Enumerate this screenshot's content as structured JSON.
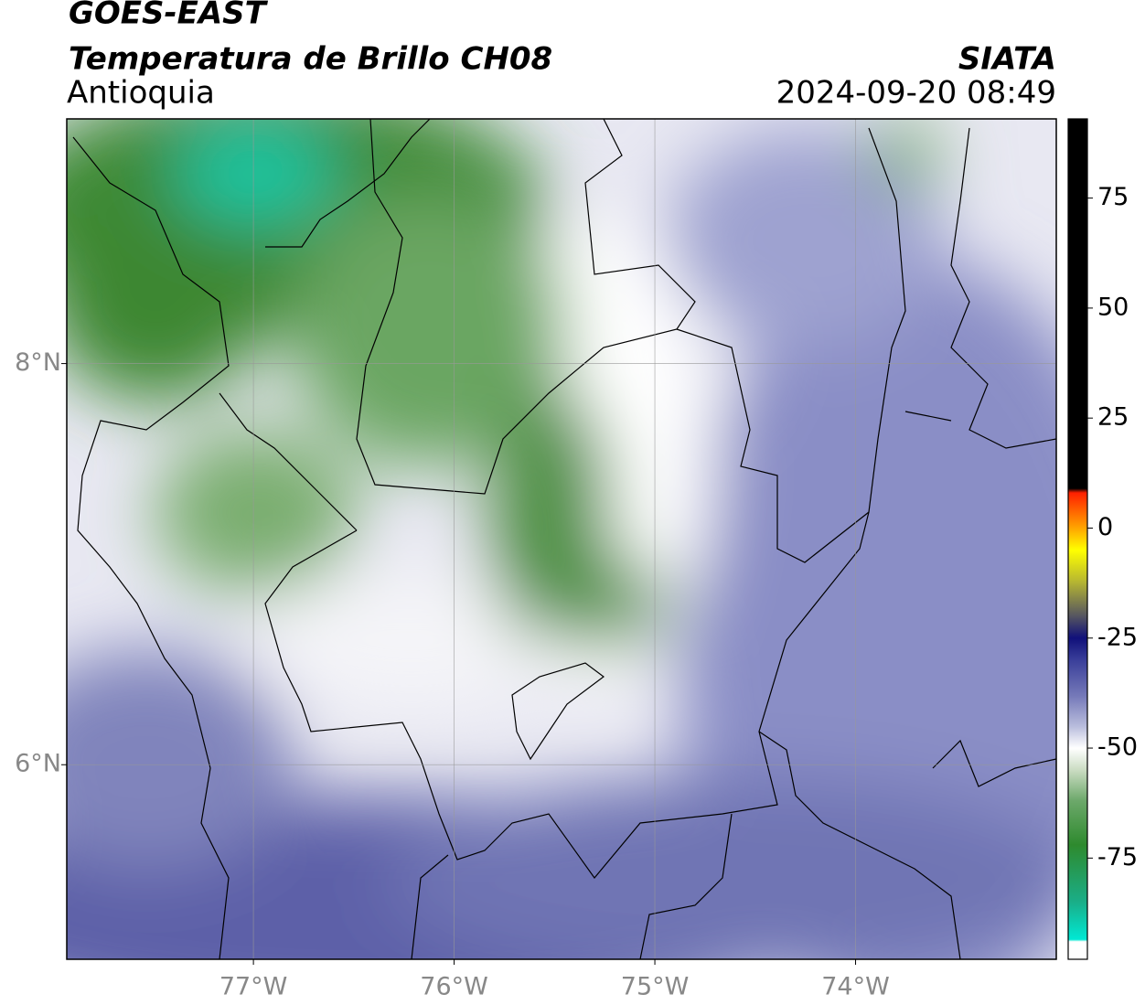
{
  "header": {
    "title": "GOES-EAST",
    "subtitle": "Temperatura de Brillo CH08",
    "region": "Antioquia",
    "source": "SIATA",
    "timestamp": "2024-09-20 08:49"
  },
  "map": {
    "xlim": [
      -77.93,
      -73.0
    ],
    "ylim": [
      5.03,
      9.22
    ],
    "xticks": [
      {
        "value": -77,
        "label": "77°W"
      },
      {
        "value": -76,
        "label": "76°W"
      },
      {
        "value": -75,
        "label": "75°W"
      },
      {
        "value": -74,
        "label": "74°W"
      }
    ],
    "yticks": [
      {
        "value": 8,
        "label": "8°N"
      },
      {
        "value": 6,
        "label": "6°N"
      }
    ],
    "grid": true
  },
  "colorbar": {
    "lim": [
      -98,
      93
    ],
    "ticks": [
      75,
      50,
      25,
      0,
      -25,
      -50,
      -75
    ],
    "colormap": [
      {
        "value": -98,
        "color": "#ffffff"
      },
      {
        "value": -94,
        "color": "#ffffff"
      },
      {
        "value": -93.5,
        "color": "#00e8d4"
      },
      {
        "value": -85,
        "color": "#1aae88"
      },
      {
        "value": -72,
        "color": "#2e8a2e"
      },
      {
        "value": -62,
        "color": "#6ca86a"
      },
      {
        "value": -55,
        "color": "#cadcc2"
      },
      {
        "value": -50,
        "color": "#ffffff"
      },
      {
        "value": -45,
        "color": "#b8bcdc"
      },
      {
        "value": -38,
        "color": "#7478b8"
      },
      {
        "value": -30,
        "color": "#3a3f9a"
      },
      {
        "value": -25,
        "color": "#10107a"
      },
      {
        "value": -20,
        "color": "#555560"
      },
      {
        "value": -12,
        "color": "#b8b830"
      },
      {
        "value": -5,
        "color": "#ffff00"
      },
      {
        "value": 0,
        "color": "#ffa500"
      },
      {
        "value": 8,
        "color": "#ff2000"
      },
      {
        "value": 9,
        "color": "#000000"
      },
      {
        "value": 93,
        "color": "#000000"
      }
    ]
  }
}
